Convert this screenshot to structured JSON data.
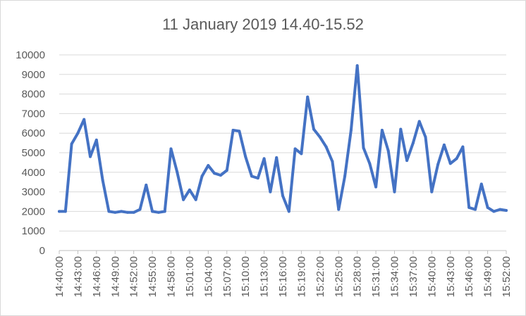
{
  "chart_data": {
    "type": "line",
    "title": "11 January 2019 14.40-15.52",
    "xlabel": "",
    "ylabel": "",
    "ylim": [
      0,
      10000
    ],
    "yticks": [
      "0",
      "1000",
      "2000",
      "3000",
      "4000",
      "5000",
      "6000",
      "7000",
      "8000",
      "9000",
      "10000"
    ],
    "xtick_labels": [
      "14:40:00",
      "14:43:00",
      "14:46:00",
      "14:49:00",
      "14:52:00",
      "14:55:00",
      "14:58:00",
      "15:01:00",
      "15:04:00",
      "15:07:00",
      "15:10:00",
      "15:13:00",
      "15:16:00",
      "15:19:00",
      "15:22:00",
      "15:25:00",
      "15:28:00",
      "15:31:00",
      "15:34:00",
      "15:37:00",
      "15:40:00",
      "15:43:00",
      "15:46:00",
      "15:49:00",
      "15:52:00"
    ],
    "grid": "horizontal",
    "line_color": "#4472c4",
    "series": [
      {
        "values": [
          2000,
          2000,
          5450,
          6000,
          6700,
          4800,
          5650,
          3600,
          2000,
          1950,
          2000,
          1950,
          1950,
          2100,
          3350,
          2000,
          1950,
          2000,
          5200,
          4000,
          2600,
          3100,
          2600,
          3800,
          4350,
          3950,
          3850,
          4100,
          6150,
          6100,
          4800,
          3800,
          3700,
          4700,
          3000,
          4750,
          2800,
          2000,
          5200,
          4950,
          7850,
          6200,
          5800,
          5300,
          4550,
          2100,
          3800,
          6150,
          9450,
          5250,
          4450,
          3250,
          6150,
          5100,
          3000,
          6200,
          4600,
          5500,
          6600,
          5800,
          3000,
          4400,
          5400,
          4450,
          4700,
          5300,
          2200,
          2100,
          3400,
          2200,
          2000,
          2100,
          2050
        ]
      }
    ]
  }
}
